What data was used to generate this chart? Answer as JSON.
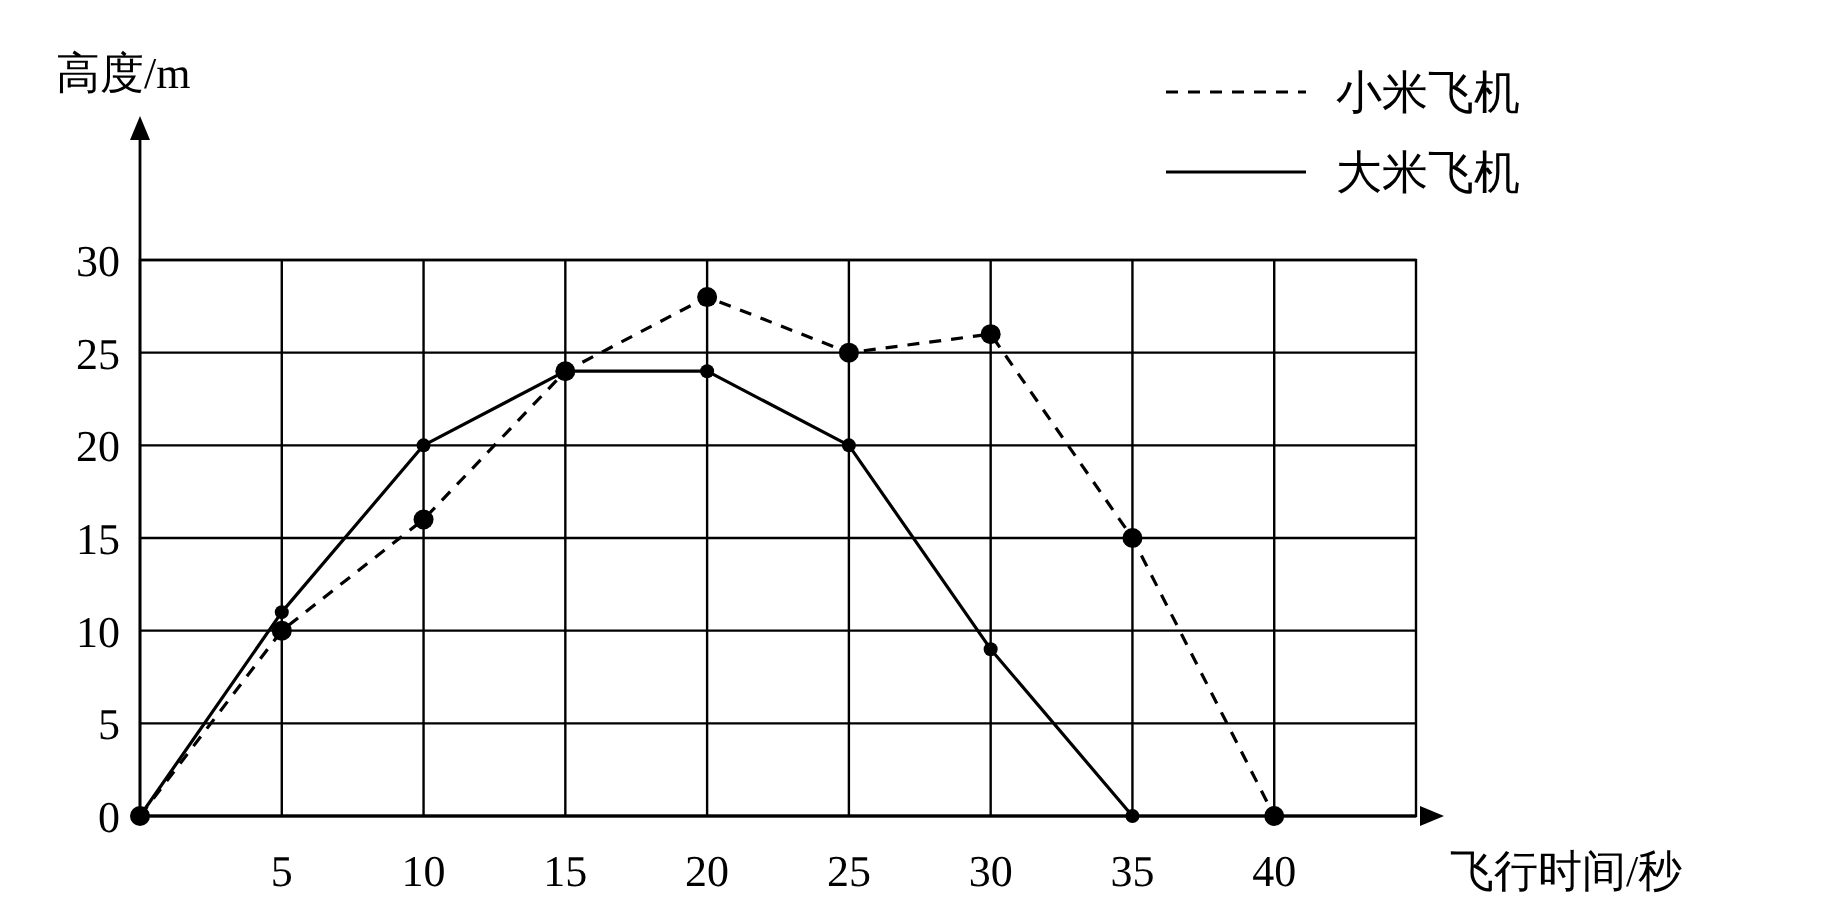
{
  "chart_data": {
    "type": "line",
    "xlabel": "飞行时间/秒",
    "ylabel": "高度/m",
    "xlim": [
      0,
      45
    ],
    "ylim": [
      0,
      30
    ],
    "xticks": [
      5,
      10,
      15,
      20,
      25,
      30,
      35,
      40
    ],
    "yticks": [
      0,
      5,
      10,
      15,
      20,
      25,
      30
    ],
    "grid": true,
    "legend": "top right",
    "marker": "circle",
    "series": [
      {
        "name": "小米飞机",
        "color": "#000000",
        "line_style": "dashed",
        "x": [
          0,
          5,
          10,
          15,
          20,
          25,
          30,
          35,
          40
        ],
        "values": [
          0,
          10,
          16,
          24,
          28,
          25,
          26,
          15,
          0
        ]
      },
      {
        "name": "大米飞机",
        "color": "#000000",
        "line_style": "solid",
        "x": [
          0,
          5,
          10,
          15,
          20,
          25,
          30,
          35
        ],
        "values": [
          0,
          11,
          20,
          24,
          24,
          20,
          9,
          0
        ]
      }
    ]
  }
}
